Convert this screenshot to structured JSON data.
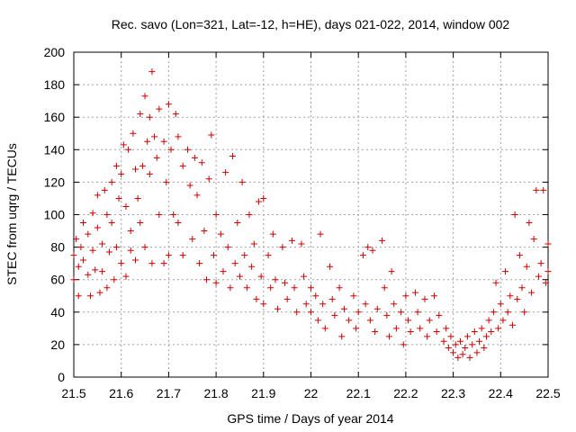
{
  "chart_data": {
    "type": "scatter",
    "title": "Rec. savo (Lon=321, Lat=-12, h=HE), days 021-022, 2014, window 002",
    "xlabel": "GPS time / Days of year 2014",
    "ylabel": "STEC from uqrg / TECUs",
    "xlim": [
      21.5,
      22.5
    ],
    "ylim": [
      0,
      200
    ],
    "xticks": [
      "21.5",
      "21.6",
      "21.7",
      "21.8",
      "21.9",
      "22",
      "22.1",
      "22.2",
      "22.3",
      "22.4",
      "22.5"
    ],
    "yticks": [
      "0",
      "20",
      "40",
      "60",
      "80",
      "100",
      "120",
      "140",
      "160",
      "180",
      "200"
    ],
    "grid": true,
    "marker": "+",
    "marker_color": "#cc0000",
    "series": [
      {
        "name": "STEC",
        "points": [
          [
            21.5,
            60
          ],
          [
            21.5,
            75
          ],
          [
            21.505,
            85
          ],
          [
            21.51,
            50
          ],
          [
            21.51,
            68
          ],
          [
            21.515,
            80
          ],
          [
            21.52,
            95
          ],
          [
            21.52,
            72
          ],
          [
            21.53,
            63
          ],
          [
            21.53,
            88
          ],
          [
            21.535,
            50
          ],
          [
            21.54,
            101
          ],
          [
            21.54,
            78
          ],
          [
            21.545,
            66
          ],
          [
            21.55,
            112
          ],
          [
            21.55,
            92
          ],
          [
            21.555,
            52
          ],
          [
            21.56,
            82
          ],
          [
            21.56,
            65
          ],
          [
            21.565,
            115
          ],
          [
            21.57,
            100
          ],
          [
            21.57,
            55
          ],
          [
            21.575,
            77
          ],
          [
            21.58,
            120
          ],
          [
            21.58,
            95
          ],
          [
            21.585,
            60
          ],
          [
            21.59,
            130
          ],
          [
            21.59,
            80
          ],
          [
            21.595,
            110
          ],
          [
            21.6,
            125
          ],
          [
            21.6,
            70
          ],
          [
            21.605,
            143
          ],
          [
            21.61,
            105
          ],
          [
            21.61,
            62
          ],
          [
            21.615,
            140
          ],
          [
            21.62,
            90
          ],
          [
            21.62,
            78
          ],
          [
            21.625,
            150
          ],
          [
            21.63,
            128
          ],
          [
            21.63,
            72
          ],
          [
            21.635,
            110
          ],
          [
            21.64,
            162
          ],
          [
            21.64,
            95
          ],
          [
            21.645,
            130
          ],
          [
            21.65,
            173
          ],
          [
            21.65,
            80
          ],
          [
            21.655,
            145
          ],
          [
            21.66,
            160
          ],
          [
            21.66,
            125
          ],
          [
            21.665,
            188
          ],
          [
            21.665,
            70
          ],
          [
            21.67,
            148
          ],
          [
            21.675,
            135
          ],
          [
            21.68,
            165
          ],
          [
            21.68,
            100
          ],
          [
            21.69,
            145
          ],
          [
            21.69,
            70
          ],
          [
            21.695,
            120
          ],
          [
            21.7,
            168
          ],
          [
            21.7,
            75
          ],
          [
            21.705,
            140
          ],
          [
            21.71,
            100
          ],
          [
            21.715,
            162
          ],
          [
            21.72,
            148
          ],
          [
            21.72,
            95
          ],
          [
            21.73,
            130
          ],
          [
            21.73,
            75
          ],
          [
            21.74,
            140
          ],
          [
            21.745,
            118
          ],
          [
            21.75,
            85
          ],
          [
            21.755,
            135
          ],
          [
            21.76,
            112
          ],
          [
            21.765,
            70
          ],
          [
            21.77,
            132
          ],
          [
            21.775,
            90
          ],
          [
            21.78,
            60
          ],
          [
            21.785,
            122
          ],
          [
            21.79,
            149
          ],
          [
            21.795,
            75
          ],
          [
            21.8,
            100
          ],
          [
            21.8,
            58
          ],
          [
            21.81,
            88
          ],
          [
            21.815,
            65
          ],
          [
            21.82,
            126
          ],
          [
            21.825,
            80
          ],
          [
            21.83,
            55
          ],
          [
            21.835,
            136
          ],
          [
            21.84,
            70
          ],
          [
            21.845,
            95
          ],
          [
            21.85,
            62
          ],
          [
            21.855,
            120
          ],
          [
            21.86,
            75
          ],
          [
            21.865,
            55
          ],
          [
            21.87,
            100
          ],
          [
            21.875,
            68
          ],
          [
            21.88,
            82
          ],
          [
            21.885,
            48
          ],
          [
            21.89,
            108
          ],
          [
            21.895,
            62
          ],
          [
            21.9,
            110
          ],
          [
            21.9,
            45
          ],
          [
            21.91,
            75
          ],
          [
            21.915,
            55
          ],
          [
            21.92,
            88
          ],
          [
            21.925,
            60
          ],
          [
            21.93,
            42
          ],
          [
            21.94,
            80
          ],
          [
            21.945,
            58
          ],
          [
            21.95,
            48
          ],
          [
            21.96,
            84
          ],
          [
            21.965,
            55
          ],
          [
            21.97,
            40
          ],
          [
            21.98,
            82
          ],
          [
            21.985,
            62
          ],
          [
            21.99,
            45
          ],
          [
            22.0,
            55
          ],
          [
            22.0,
            40
          ],
          [
            22.01,
            50
          ],
          [
            22.015,
            35
          ],
          [
            22.02,
            88
          ],
          [
            22.025,
            45
          ],
          [
            22.03,
            30
          ],
          [
            22.04,
            68
          ],
          [
            22.045,
            48
          ],
          [
            22.05,
            38
          ],
          [
            22.06,
            55
          ],
          [
            22.065,
            25
          ],
          [
            22.07,
            42
          ],
          [
            22.08,
            35
          ],
          [
            22.09,
            50
          ],
          [
            22.095,
            30
          ],
          [
            22.1,
            40
          ],
          [
            22.11,
            75
          ],
          [
            22.115,
            45
          ],
          [
            22.12,
            80
          ],
          [
            22.125,
            35
          ],
          [
            22.13,
            78
          ],
          [
            22.135,
            28
          ],
          [
            22.14,
            42
          ],
          [
            22.15,
            84
          ],
          [
            22.155,
            55
          ],
          [
            22.16,
            38
          ],
          [
            22.165,
            25
          ],
          [
            22.17,
            65
          ],
          [
            22.175,
            45
          ],
          [
            22.18,
            30
          ],
          [
            22.19,
            40
          ],
          [
            22.195,
            20
          ],
          [
            22.2,
            50
          ],
          [
            22.205,
            35
          ],
          [
            22.21,
            28
          ],
          [
            22.22,
            52
          ],
          [
            22.225,
            40
          ],
          [
            22.23,
            30
          ],
          [
            22.24,
            48
          ],
          [
            22.245,
            25
          ],
          [
            22.25,
            35
          ],
          [
            22.26,
            50
          ],
          [
            22.265,
            28
          ],
          [
            22.27,
            38
          ],
          [
            22.28,
            22
          ],
          [
            22.285,
            30
          ],
          [
            22.29,
            18
          ],
          [
            22.295,
            25
          ],
          [
            22.3,
            15
          ],
          [
            22.305,
            20
          ],
          [
            22.31,
            12
          ],
          [
            22.315,
            22
          ],
          [
            22.32,
            14
          ],
          [
            22.325,
            18
          ],
          [
            22.33,
            25
          ],
          [
            22.335,
            12
          ],
          [
            22.34,
            20
          ],
          [
            22.345,
            28
          ],
          [
            22.35,
            15
          ],
          [
            22.355,
            22
          ],
          [
            22.36,
            30
          ],
          [
            22.365,
            18
          ],
          [
            22.37,
            25
          ],
          [
            22.375,
            35
          ],
          [
            22.38,
            28
          ],
          [
            22.385,
            40
          ],
          [
            22.39,
            58
          ],
          [
            22.395,
            30
          ],
          [
            22.4,
            45
          ],
          [
            22.405,
            35
          ],
          [
            22.41,
            65
          ],
          [
            22.415,
            40
          ],
          [
            22.42,
            50
          ],
          [
            22.425,
            32
          ],
          [
            22.43,
            100
          ],
          [
            22.435,
            48
          ],
          [
            22.44,
            75
          ],
          [
            22.445,
            55
          ],
          [
            22.45,
            40
          ],
          [
            22.455,
            68
          ],
          [
            22.46,
            95
          ],
          [
            22.465,
            52
          ],
          [
            22.47,
            85
          ],
          [
            22.475,
            115
          ],
          [
            22.48,
            62
          ],
          [
            22.485,
            70
          ],
          [
            22.49,
            115
          ],
          [
            22.495,
            58
          ],
          [
            22.5,
            82
          ],
          [
            22.5,
            65
          ]
        ]
      }
    ]
  }
}
